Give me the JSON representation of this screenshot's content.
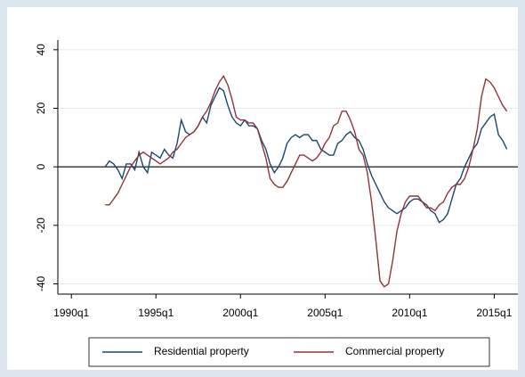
{
  "chart_data": {
    "type": "line",
    "x": [
      1992,
      1992.25,
      1992.5,
      1992.75,
      1993,
      1993.25,
      1993.5,
      1993.75,
      1994,
      1994.25,
      1994.5,
      1994.75,
      1995,
      1995.25,
      1995.5,
      1995.75,
      1996,
      1996.25,
      1996.5,
      1996.75,
      1997,
      1997.25,
      1997.5,
      1997.75,
      1998,
      1998.25,
      1998.5,
      1998.75,
      1999,
      1999.25,
      1999.5,
      1999.75,
      2000,
      2000.25,
      2000.5,
      2000.75,
      2001,
      2001.25,
      2001.5,
      2001.75,
      2002,
      2002.25,
      2002.5,
      2002.75,
      2003,
      2003.25,
      2003.5,
      2003.75,
      2004,
      2004.25,
      2004.5,
      2004.75,
      2005,
      2005.25,
      2005.5,
      2005.75,
      2006,
      2006.25,
      2006.5,
      2006.75,
      2007,
      2007.25,
      2007.5,
      2007.75,
      2008,
      2008.25,
      2008.5,
      2008.75,
      2009,
      2009.25,
      2009.5,
      2009.75,
      2010,
      2010.25,
      2010.5,
      2010.75,
      2011,
      2011.25,
      2011.5,
      2011.75,
      2012,
      2012.25,
      2012.5,
      2012.75,
      2013,
      2013.25,
      2013.5,
      2013.75,
      2014,
      2014.25,
      2014.5,
      2014.75,
      2015,
      2015.25,
      2015.5,
      2015.75
    ],
    "series": [
      {
        "name": "Residential property",
        "color": "#1a476f",
        "values": [
          0,
          2,
          1,
          -1,
          -4,
          1,
          1,
          -1,
          5,
          0,
          -2,
          5,
          4,
          3,
          6,
          4,
          3,
          8,
          16,
          12,
          11,
          12,
          14,
          17,
          15,
          21,
          24,
          27,
          26,
          21,
          17,
          15,
          14,
          16,
          14,
          14,
          13,
          9,
          6,
          1,
          -2,
          0,
          3,
          8,
          10,
          11,
          10,
          11,
          11,
          9,
          9,
          6,
          5,
          4,
          4,
          8,
          9,
          11,
          12,
          10,
          9,
          6,
          1,
          -3,
          -6,
          -9,
          -12,
          -14,
          -15,
          -16,
          -15,
          -14,
          -12,
          -11,
          -11,
          -12,
          -13,
          -15,
          -16,
          -19,
          -18,
          -16,
          -11,
          -6,
          -4,
          0,
          3,
          6,
          8,
          13,
          15,
          17,
          18,
          11,
          9,
          6
        ]
      },
      {
        "name": "Commercial property",
        "color": "#90353b",
        "values": [
          -13,
          -13,
          -11,
          -9,
          -6,
          -3,
          0,
          2,
          4,
          5,
          4,
          3,
          2,
          1,
          2,
          3,
          5,
          6,
          8,
          10,
          11,
          12,
          14,
          17,
          19,
          22,
          26,
          29,
          31,
          28,
          23,
          17,
          16,
          16,
          15,
          15,
          13,
          8,
          3,
          -4,
          -6,
          -7,
          -7,
          -5,
          -2,
          1,
          4,
          4,
          3,
          2,
          3,
          5,
          8,
          10,
          14,
          15,
          19,
          19,
          16,
          12,
          6,
          4,
          -2,
          -12,
          -25,
          -39,
          -41,
          -40,
          -32,
          -22,
          -16,
          -12,
          -10,
          -10,
          -10,
          -12,
          -14,
          -14,
          -15,
          -13,
          -12,
          -9,
          -7,
          -6,
          -6,
          -4,
          0,
          6,
          13,
          24,
          30,
          29,
          27,
          24,
          21,
          19
        ]
      }
    ],
    "xlim": [
      1989.2,
      2016.4
    ],
    "xticks": [
      {
        "value": 1990,
        "label": "1990q1"
      },
      {
        "value": 1995,
        "label": "1995q1"
      },
      {
        "value": 2000,
        "label": "2000q1"
      },
      {
        "value": 2005,
        "label": "2005q1"
      },
      {
        "value": 2010,
        "label": "2010q1"
      },
      {
        "value": 2015,
        "label": "2015q1"
      }
    ],
    "ylim": [
      -43.5,
      43.3
    ],
    "yticks": [
      -40,
      -20,
      0,
      20,
      40
    ],
    "grid": true
  }
}
